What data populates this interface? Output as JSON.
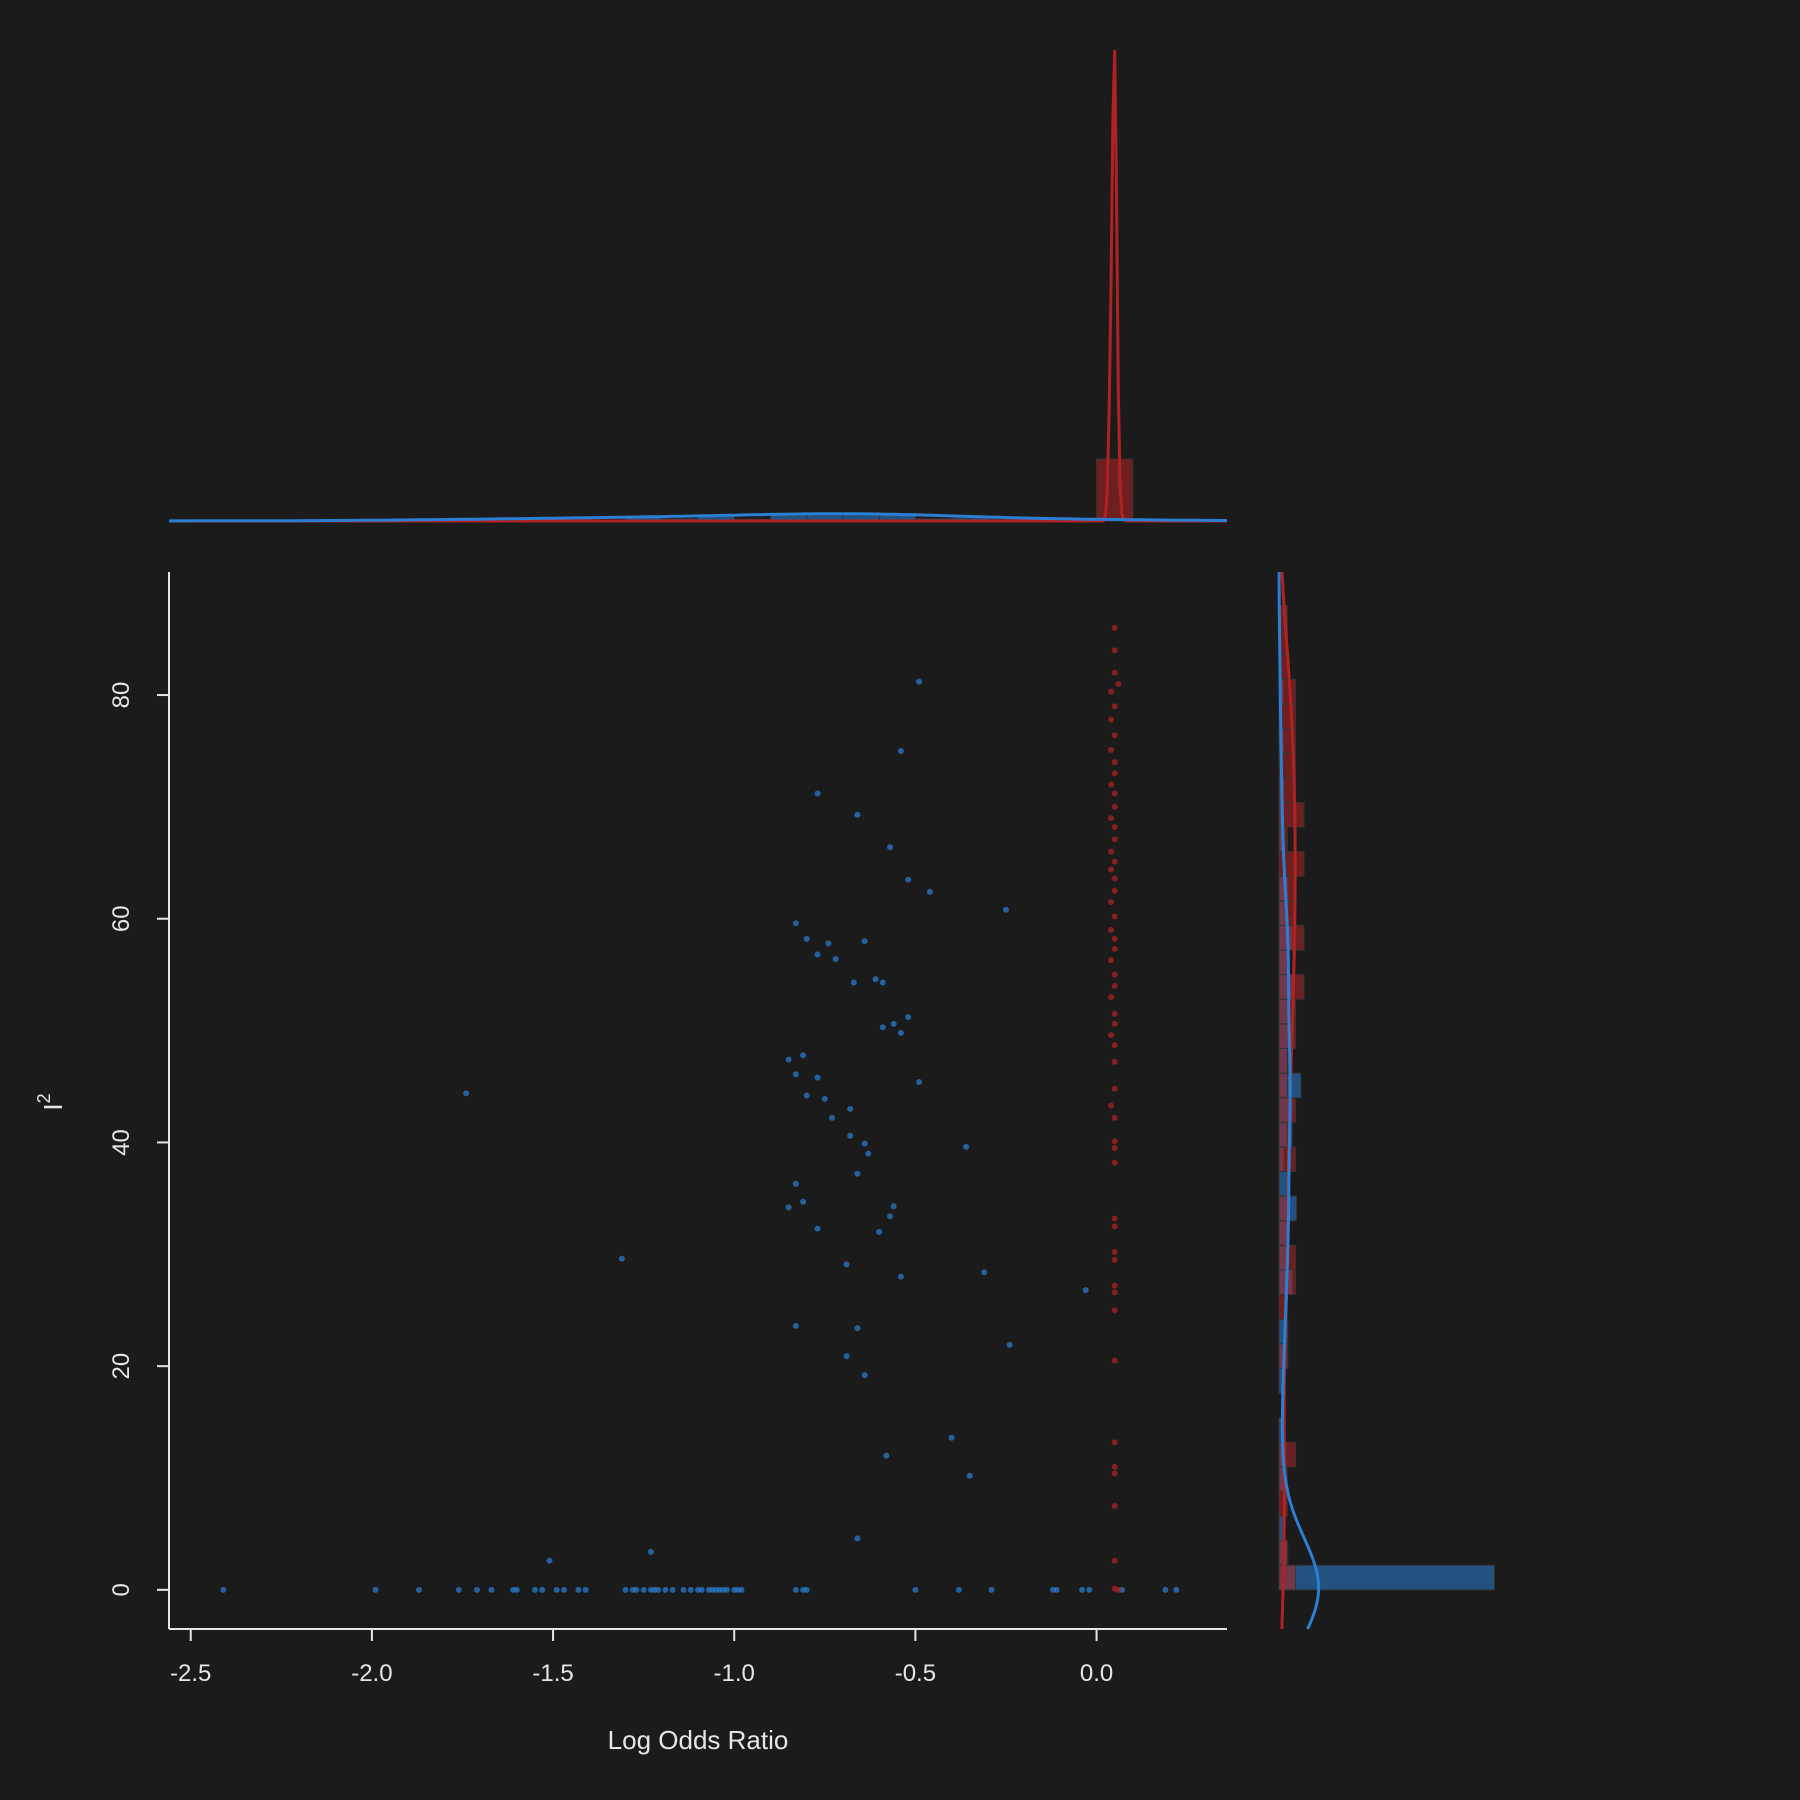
{
  "chart_data": {
    "type": "scatter",
    "title": "",
    "xlabel": "Log Odds Ratio",
    "ylabel": "I",
    "ylabel_superscript": "2",
    "xlim": [
      -2.56,
      0.36
    ],
    "ylim": [
      -3.5,
      91
    ],
    "xticks": [
      "-2.5",
      "-2.0",
      "-1.5",
      "-1.0",
      "-0.5",
      "0.0"
    ],
    "yticks": [
      "0",
      "20",
      "40",
      "60",
      "80"
    ],
    "grid": false,
    "legend": "none",
    "marginals": {
      "top": "histogram + density of Log Odds Ratio",
      "right": "histogram + density of I^2"
    },
    "series": [
      {
        "color": "#2a7fd4",
        "points": [
          [
            -0.49,
            81.2
          ],
          [
            -0.54,
            75
          ],
          [
            -0.77,
            71.2
          ],
          [
            -0.66,
            69.3
          ],
          [
            -0.57,
            66.4
          ],
          [
            -0.52,
            63.5
          ],
          [
            -0.46,
            62.4
          ],
          [
            -0.25,
            60.8
          ],
          [
            -0.83,
            59.6
          ],
          [
            -0.8,
            58.2
          ],
          [
            -0.74,
            57.8
          ],
          [
            -0.64,
            58.0
          ],
          [
            -0.77,
            56.8
          ],
          [
            -0.72,
            56.4
          ],
          [
            -0.61,
            54.6
          ],
          [
            -0.67,
            54.3
          ],
          [
            -0.59,
            54.3
          ],
          [
            -0.52,
            51.2
          ],
          [
            -0.56,
            50.6
          ],
          [
            -0.59,
            50.3
          ],
          [
            -0.54,
            49.8
          ],
          [
            -0.85,
            47.4
          ],
          [
            -0.81,
            47.8
          ],
          [
            -0.83,
            46.1
          ],
          [
            -0.77,
            45.8
          ],
          [
            -0.49,
            45.4
          ],
          [
            -1.74,
            44.4
          ],
          [
            -0.8,
            44.2
          ],
          [
            -0.75,
            43.9
          ],
          [
            -0.68,
            43.0
          ],
          [
            -0.73,
            42.2
          ],
          [
            -0.68,
            40.6
          ],
          [
            -0.64,
            39.9
          ],
          [
            -0.63,
            39.0
          ],
          [
            -0.36,
            39.6
          ],
          [
            -0.66,
            37.2
          ],
          [
            -0.83,
            36.3
          ],
          [
            -0.81,
            34.7
          ],
          [
            -0.56,
            34.3
          ],
          [
            -0.85,
            34.2
          ],
          [
            -0.57,
            33.4
          ],
          [
            -0.77,
            32.3
          ],
          [
            -0.6,
            32.0
          ],
          [
            -1.31,
            29.6
          ],
          [
            -0.69,
            29.1
          ],
          [
            -0.31,
            28.4
          ],
          [
            -0.54,
            28.0
          ],
          [
            -0.03,
            26.8
          ],
          [
            -0.83,
            23.6
          ],
          [
            -0.66,
            23.4
          ],
          [
            -0.24,
            21.9
          ],
          [
            -0.69,
            20.9
          ],
          [
            -0.64,
            19.2
          ],
          [
            -0.4,
            13.6
          ],
          [
            -0.58,
            12.0
          ],
          [
            -0.35,
            10.2
          ],
          [
            -0.66,
            4.6
          ],
          [
            -1.23,
            3.4
          ],
          [
            -1.51,
            2.6
          ],
          [
            -2.41,
            0
          ],
          [
            -1.99,
            0
          ],
          [
            -1.87,
            0
          ],
          [
            -1.76,
            0
          ],
          [
            -1.71,
            0
          ],
          [
            -1.67,
            0
          ],
          [
            -1.61,
            0
          ],
          [
            -1.6,
            0
          ],
          [
            -1.55,
            0
          ],
          [
            -1.53,
            0
          ],
          [
            -1.49,
            0
          ],
          [
            -1.47,
            0
          ],
          [
            -1.43,
            0
          ],
          [
            -1.41,
            0
          ],
          [
            -1.3,
            0
          ],
          [
            -1.28,
            0
          ],
          [
            -1.27,
            0
          ],
          [
            -1.25,
            0
          ],
          [
            -1.23,
            0
          ],
          [
            -1.22,
            0
          ],
          [
            -1.21,
            0
          ],
          [
            -1.19,
            0
          ],
          [
            -1.17,
            0
          ],
          [
            -1.14,
            0
          ],
          [
            -1.12,
            0
          ],
          [
            -1.1,
            0
          ],
          [
            -1.09,
            0
          ],
          [
            -1.07,
            0
          ],
          [
            -1.06,
            0
          ],
          [
            -1.05,
            0
          ],
          [
            -1.04,
            0
          ],
          [
            -1.03,
            0
          ],
          [
            -1.02,
            0
          ],
          [
            -1.0,
            0
          ],
          [
            -0.99,
            0
          ],
          [
            -0.98,
            0
          ],
          [
            -0.83,
            0
          ],
          [
            -0.81,
            0
          ],
          [
            -0.8,
            0
          ],
          [
            -0.5,
            0
          ],
          [
            -0.38,
            0
          ],
          [
            -0.29,
            0
          ],
          [
            -0.12,
            0
          ],
          [
            -0.11,
            0
          ],
          [
            -0.04,
            0
          ],
          [
            -0.02,
            0
          ],
          [
            0.07,
            0
          ],
          [
            0.19,
            0
          ],
          [
            0.22,
            0
          ]
        ]
      },
      {
        "color": "#b22222",
        "points": [
          [
            0.05,
            86
          ],
          [
            0.05,
            84
          ],
          [
            0.05,
            82
          ],
          [
            0.06,
            81
          ],
          [
            0.04,
            80.3
          ],
          [
            0.05,
            79
          ],
          [
            0.04,
            77.8
          ],
          [
            0.05,
            76.4
          ],
          [
            0.04,
            75.1
          ],
          [
            0.05,
            74
          ],
          [
            0.05,
            73
          ],
          [
            0.04,
            72
          ],
          [
            0.05,
            71.2
          ],
          [
            0.05,
            70
          ],
          [
            0.04,
            69
          ],
          [
            0.05,
            68.2
          ],
          [
            0.05,
            67.1
          ],
          [
            0.04,
            66
          ],
          [
            0.05,
            65.1
          ],
          [
            0.04,
            64.4
          ],
          [
            0.05,
            63.6
          ],
          [
            0.05,
            62.5
          ],
          [
            0.04,
            61.5
          ],
          [
            0.05,
            60.2
          ],
          [
            0.04,
            59
          ],
          [
            0.05,
            58.2
          ],
          [
            0.05,
            57.3
          ],
          [
            0.04,
            56.3
          ],
          [
            0.05,
            55
          ],
          [
            0.05,
            54
          ],
          [
            0.04,
            53
          ],
          [
            0.05,
            51.5
          ],
          [
            0.05,
            50.6
          ],
          [
            0.04,
            49.6
          ],
          [
            0.05,
            48.7
          ],
          [
            0.05,
            47.2
          ],
          [
            0.05,
            44.8
          ],
          [
            0.04,
            43.3
          ],
          [
            0.05,
            42.2
          ],
          [
            0.05,
            40.1
          ],
          [
            0.05,
            39.5
          ],
          [
            0.05,
            38.2
          ],
          [
            0.05,
            33.2
          ],
          [
            0.05,
            32.5
          ],
          [
            0.05,
            30.2
          ],
          [
            0.05,
            29.5
          ],
          [
            0.05,
            27.2
          ],
          [
            0.05,
            26.6
          ],
          [
            0.05,
            25
          ],
          [
            0.05,
            20.5
          ],
          [
            0.05,
            13.2
          ],
          [
            0.05,
            11
          ],
          [
            0.05,
            10.4
          ],
          [
            0.05,
            7.5
          ],
          [
            0.05,
            2.6
          ],
          [
            0.05,
            0.1
          ],
          [
            0.06,
            0
          ]
        ]
      }
    ]
  },
  "colors": {
    "background": "#1b1b1b",
    "axis": "#e6e6e6",
    "blue": "#2a7fd4",
    "red": "#b22222"
  }
}
